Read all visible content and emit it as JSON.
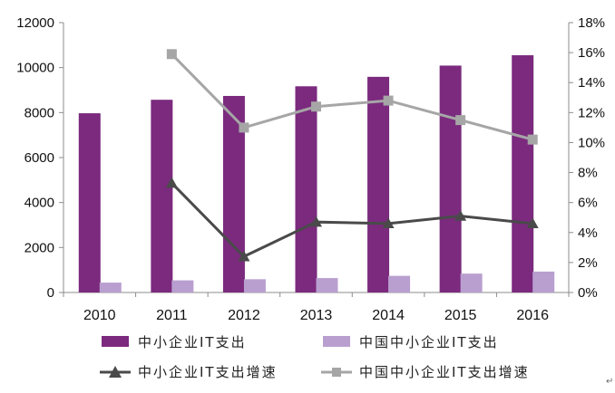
{
  "chart_data": {
    "type": "bar",
    "categories": [
      "2010",
      "2011",
      "2012",
      "2013",
      "2014",
      "2015",
      "2016"
    ],
    "series": [
      {
        "name": "中小企业IT支出",
        "kind": "bar",
        "axis": "left",
        "color": "#7b2a7e",
        "values": [
          7970,
          8570,
          8740,
          9170,
          9590,
          10090,
          10550
        ]
      },
      {
        "name": "中国中小企业IT支出",
        "kind": "bar",
        "axis": "left",
        "color": "#b99fd0",
        "values": [
          440,
          540,
          590,
          640,
          740,
          840,
          930
        ]
      },
      {
        "name": "中小企业IT支出增速",
        "kind": "line",
        "axis": "right",
        "color": "#4a4a4a",
        "marker": "triangle",
        "values": [
          null,
          7.3,
          2.4,
          4.7,
          4.6,
          5.1,
          4.6
        ]
      },
      {
        "name": "中国中小企业IT支出增速",
        "kind": "line",
        "axis": "right",
        "color": "#a6a6a6",
        "marker": "square",
        "values": [
          null,
          15.9,
          11.0,
          12.4,
          12.8,
          11.5,
          10.2
        ]
      }
    ],
    "y_left": {
      "min": 0,
      "max": 12000,
      "ticks": [
        "0",
        "2000",
        "4000",
        "6000",
        "8000",
        "10000",
        "12000"
      ]
    },
    "y_right": {
      "min": 0,
      "max": 18,
      "ticks": [
        "0%",
        "2%",
        "4%",
        "6%",
        "8%",
        "10%",
        "12%",
        "14%",
        "16%",
        "18%"
      ]
    },
    "grid": false,
    "legend_position": "bottom"
  },
  "corner_mark": "↵"
}
